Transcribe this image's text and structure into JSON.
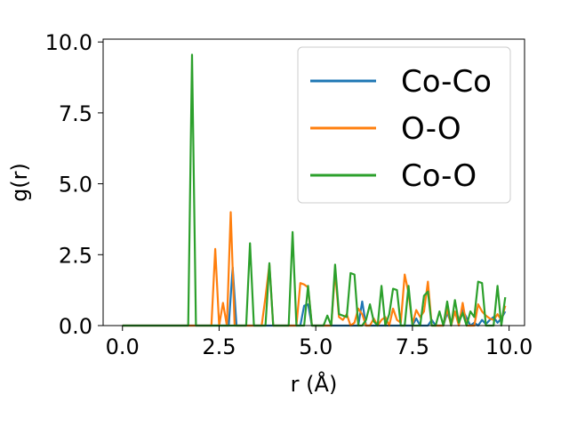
{
  "chart_data": {
    "type": "line",
    "xlabel": "r (Å)",
    "ylabel": "g(r)",
    "xlim": [
      -0.5,
      10.4
    ],
    "ylim": [
      0,
      10.1
    ],
    "xticks": [
      0.0,
      2.5,
      5.0,
      7.5,
      10.0
    ],
    "xtick_labels": [
      "0.0",
      "2.5",
      "5.0",
      "7.5",
      "10.0"
    ],
    "yticks": [
      0.0,
      2.5,
      5.0,
      7.5,
      10.0
    ],
    "ytick_labels": [
      "0.0",
      "2.5",
      "5.0",
      "7.5",
      "10.0"
    ],
    "grid": false,
    "legend_position": "top-right",
    "series": [
      {
        "name": "Co-Co",
        "color": "#1f77b4",
        "x": [
          0.0,
          2.75,
          2.85,
          2.95,
          4.6,
          4.7,
          4.8,
          4.9,
          6.1,
          6.2,
          6.3,
          7.5,
          7.6,
          7.7,
          7.9,
          8.0,
          8.1,
          8.3,
          8.4,
          8.5,
          8.6,
          8.7,
          8.8,
          9.0,
          9.1,
          9.2,
          9.3,
          9.4,
          9.5,
          9.6,
          9.7,
          9.8,
          9.9
        ],
        "y": [
          0.0,
          0.0,
          2.05,
          0.0,
          0.0,
          0.7,
          0.75,
          0.0,
          0.0,
          0.85,
          0.0,
          0.0,
          0.25,
          0.0,
          0.0,
          0.2,
          0.0,
          0.0,
          0.45,
          0.1,
          0.45,
          0.2,
          0.55,
          0.0,
          0.1,
          0.0,
          0.2,
          0.05,
          0.2,
          0.3,
          0.1,
          0.25,
          0.5
        ]
      },
      {
        "name": "O-O",
        "color": "#ff7f0e",
        "x": [
          0.0,
          2.2,
          2.3,
          2.4,
          2.5,
          2.6,
          2.7,
          2.8,
          2.9,
          3.0,
          3.6,
          3.7,
          3.8,
          3.9,
          4.4,
          4.5,
          4.6,
          4.7,
          4.8,
          4.9,
          5.4,
          5.5,
          5.6,
          5.7,
          5.8,
          5.9,
          6.0,
          6.1,
          6.2,
          6.3,
          6.4,
          6.5,
          6.6,
          6.7,
          6.8,
          6.9,
          7.0,
          7.1,
          7.2,
          7.3,
          7.4,
          7.5,
          7.6,
          7.7,
          7.8,
          7.9,
          8.0,
          8.1,
          8.2,
          8.3,
          8.4,
          8.5,
          8.6,
          8.7,
          8.8,
          8.9,
          9.0,
          9.1,
          9.2,
          9.3,
          9.4,
          9.5,
          9.6,
          9.7,
          9.8,
          9.9
        ],
        "y": [
          0.0,
          0.0,
          0.0,
          2.7,
          0.0,
          0.8,
          0.0,
          4.0,
          0.0,
          0.0,
          0.0,
          1.0,
          2.15,
          0.0,
          0.0,
          0.0,
          1.5,
          1.45,
          1.35,
          0.0,
          0.0,
          1.9,
          0.3,
          0.2,
          0.4,
          0.0,
          0.1,
          0.6,
          0.4,
          0.0,
          0.0,
          0.25,
          0.0,
          0.2,
          0.3,
          0.0,
          0.6,
          0.2,
          0.1,
          1.8,
          1.15,
          0.05,
          0.55,
          0.3,
          0.5,
          1.55,
          0.0,
          0.0,
          0.0,
          0.0,
          0.6,
          0.0,
          0.5,
          0.0,
          0.8,
          0.0,
          0.0,
          0.0,
          0.75,
          0.5,
          0.35,
          0.25,
          0.2,
          0.4,
          0.2,
          0.7
        ]
      },
      {
        "name": "Co-O",
        "color": "#2ca02c",
        "x": [
          0.0,
          1.7,
          1.8,
          1.9,
          3.2,
          3.3,
          3.4,
          3.7,
          3.8,
          3.9,
          4.3,
          4.4,
          4.5,
          4.7,
          4.8,
          4.9,
          5.2,
          5.3,
          5.4,
          5.5,
          5.6,
          5.8,
          5.9,
          6.0,
          6.1,
          6.2,
          6.3,
          6.4,
          6.5,
          6.6,
          6.7,
          6.8,
          6.9,
          7.0,
          7.1,
          7.2,
          7.3,
          7.4,
          7.5,
          7.6,
          7.7,
          7.8,
          7.9,
          8.0,
          8.1,
          8.2,
          8.3,
          8.4,
          8.5,
          8.6,
          8.7,
          8.8,
          8.9,
          9.0,
          9.1,
          9.2,
          9.3,
          9.4,
          9.5,
          9.6,
          9.7,
          9.8,
          9.9
        ],
        "y": [
          0.0,
          0.0,
          9.55,
          0.0,
          0.0,
          2.9,
          0.0,
          0.0,
          2.2,
          0.0,
          0.0,
          3.3,
          0.0,
          0.0,
          1.4,
          0.0,
          0.0,
          0.35,
          0.0,
          2.15,
          0.4,
          0.3,
          1.85,
          1.8,
          0.0,
          0.0,
          0.2,
          0.75,
          0.15,
          0.0,
          1.4,
          0.0,
          0.4,
          1.3,
          1.25,
          0.0,
          0.0,
          1.4,
          0.0,
          0.0,
          0.0,
          1.05,
          1.2,
          0.0,
          0.0,
          0.5,
          0.0,
          0.85,
          0.0,
          0.9,
          0.1,
          0.45,
          0.0,
          0.5,
          0.3,
          1.55,
          1.5,
          0.0,
          0.0,
          0.0,
          1.4,
          0.0,
          1.0
        ]
      }
    ]
  }
}
